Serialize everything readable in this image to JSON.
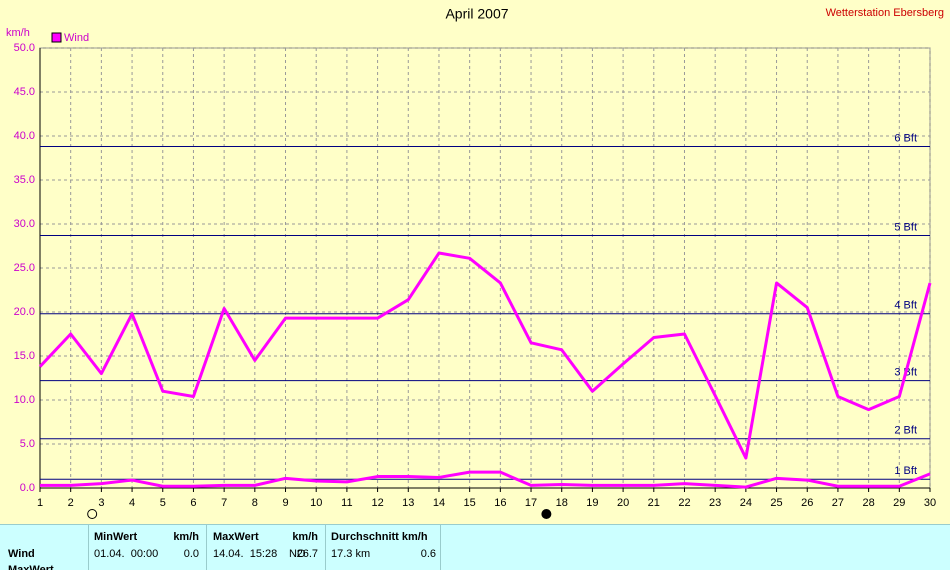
{
  "chart_data": {
    "type": "line",
    "title": "April 2007",
    "source": "Wetterstation Ebersberg",
    "ylabel": "km/h",
    "x": [
      1,
      2,
      3,
      4,
      5,
      6,
      7,
      8,
      9,
      10,
      11,
      12,
      13,
      14,
      15,
      16,
      17,
      18,
      19,
      20,
      21,
      22,
      23,
      24,
      25,
      26,
      27,
      28,
      29,
      30
    ],
    "series": [
      {
        "name": "Wind",
        "color": "#ff00ff",
        "values": [
          13.8,
          17.5,
          13.0,
          19.8,
          11.0,
          10.4,
          20.4,
          14.5,
          19.3,
          19.3,
          19.3,
          19.3,
          21.4,
          26.7,
          26.1,
          23.3,
          16.5,
          15.7,
          11.0,
          14.1,
          17.1,
          17.5,
          10.5,
          3.4,
          23.3,
          20.5,
          10.4,
          8.9,
          10.4,
          23.3
        ]
      },
      {
        "color": "#ff00ff",
        "values": [
          0.3,
          0.3,
          0.5,
          0.9,
          0.2,
          0.2,
          0.3,
          0.3,
          1.1,
          0.8,
          0.7,
          1.3,
          1.3,
          1.2,
          1.8,
          1.8,
          0.3,
          0.4,
          0.3,
          0.3,
          0.3,
          0.5,
          0.3,
          0.1,
          1.1,
          0.9,
          0.2,
          0.2,
          0.2,
          1.6
        ]
      }
    ],
    "xlim": [
      1,
      30
    ],
    "xticks": [
      1,
      2,
      3,
      4,
      5,
      6,
      7,
      8,
      9,
      10,
      11,
      12,
      13,
      14,
      15,
      16,
      17,
      18,
      19,
      20,
      21,
      22,
      23,
      24,
      25,
      26,
      27,
      28,
      29,
      30
    ],
    "ylim": [
      0,
      50
    ],
    "yticks": [
      {
        "value": 0,
        "label": "0.0"
      },
      {
        "value": 5,
        "label": "5.0"
      },
      {
        "value": 10,
        "label": "10.0"
      },
      {
        "value": 15,
        "label": "15.0"
      },
      {
        "value": 20,
        "label": "20.0"
      },
      {
        "value": 25,
        "label": "25.0"
      },
      {
        "value": 30,
        "label": "30.0"
      },
      {
        "value": 35,
        "label": "35.0"
      },
      {
        "value": 40,
        "label": "40.0"
      },
      {
        "value": 45,
        "label": "45.0"
      },
      {
        "value": 50,
        "label": "50.0"
      }
    ],
    "grid": true,
    "reference_lines": [
      {
        "value": 1.0,
        "label": "1 Bft"
      },
      {
        "value": 5.6,
        "label": "2 Bft"
      },
      {
        "value": 12.2,
        "label": "3 Bft"
      },
      {
        "value": 19.8,
        "label": "4 Bft"
      },
      {
        "value": 28.7,
        "label": "5 Bft"
      },
      {
        "value": 38.8,
        "label": "6 Bft"
      }
    ],
    "moon_markers": [
      {
        "x": 2.7,
        "filled": false
      },
      {
        "x": 17.5,
        "filled": true
      }
    ]
  },
  "table": {
    "columns": [
      {
        "title": "MinWert",
        "unit": "km/h"
      },
      {
        "title": "MaxWert",
        "unit": "km/h"
      },
      {
        "title": "Durchschnitt km/h"
      }
    ],
    "rows": [
      {
        "label": "Wind",
        "cells": [
          [
            "01.04.  00:00",
            "0.0"
          ],
          [
            "14.04.  15:28",
            "NO",
            "26.7"
          ],
          [
            "17.3 km",
            "0.6"
          ]
        ]
      },
      {
        "label": "MaxWert"
      }
    ]
  }
}
